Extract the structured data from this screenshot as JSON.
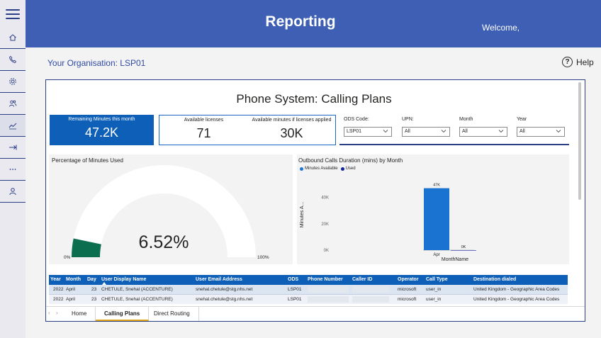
{
  "header": {
    "title": "Reporting",
    "welcome": "Welcome,"
  },
  "sidebar": {
    "items": [
      {
        "icon": "home-icon"
      },
      {
        "icon": "phone-icon"
      },
      {
        "icon": "settings-icon"
      },
      {
        "icon": "users-icon"
      },
      {
        "icon": "chart-icon"
      },
      {
        "icon": "arrow-right-icon"
      },
      {
        "icon": "more-icon"
      },
      {
        "icon": "user-icon"
      }
    ]
  },
  "organisation": {
    "label": "Your Organisation: LSP01"
  },
  "help": {
    "label": "Help",
    "icon_glyph": "?"
  },
  "report": {
    "title": "Phone System: Calling Plans",
    "kpi_remaining": {
      "label": "Remaining Minutes this month",
      "value": "47.2K"
    },
    "kpi_licenses": {
      "label": "Available licenses",
      "value": "71"
    },
    "kpi_minutes_applied": {
      "label": "Available minutes if licenses applied",
      "value": "30K"
    },
    "filters": [
      {
        "label": "ODS Code:",
        "value": "LSP01"
      },
      {
        "label": "UPN:",
        "value": "All"
      },
      {
        "label": "Month",
        "value": "All"
      },
      {
        "label": "Year",
        "value": "All"
      }
    ]
  },
  "chart_data": [
    {
      "type": "gauge",
      "title": "Percentage of Minutes Used",
      "value": 6.52,
      "value_label": "6.52%",
      "min_label": "0%",
      "max_label": "100%",
      "colors": {
        "fill": "#0b6e4f",
        "track": "#ffffff"
      }
    },
    {
      "type": "bar",
      "title": "Outbound Calls Duration (mins) by Month",
      "xlabel": "MonthName",
      "ylabel": "Minutes A...",
      "categories": [
        "Apr"
      ],
      "series": [
        {
          "name": "Minutes Available",
          "values": [
            47000
          ],
          "labels": [
            "47K"
          ],
          "color": "#1a73d0"
        },
        {
          "name": "Used",
          "values": [
            0
          ],
          "labels": [
            "0K"
          ],
          "color": "#12239e"
        }
      ],
      "yticks": [
        "0K",
        "20K",
        "40K"
      ],
      "ylim": [
        0,
        50000
      ]
    }
  ],
  "table": {
    "columns": [
      "Year",
      "Month",
      "Day",
      "User Display Name",
      "User Email Address",
      "ODS",
      "Phone Number",
      "Caller ID",
      "Operator",
      "Call Type",
      "Destination dialed"
    ],
    "rows": [
      [
        "2022",
        "April",
        "23",
        "CHETULE, Snehal (ACCENTURE)",
        "snehal.chetule@stg.nhs.net",
        "LSP01",
        "",
        "",
        "microsoft",
        "user_in",
        "United Kingdom - Geographic Area Codes"
      ],
      [
        "2022",
        "April",
        "23",
        "CHETULE, Snehal (ACCENTURE)",
        "snehal.chetule@stg.nhs.net",
        "LSP01",
        "",
        "",
        "microsoft",
        "user_in",
        "United Kingdom - Geographic Area Codes"
      ]
    ]
  },
  "tabs": [
    {
      "label": "Home"
    },
    {
      "label": "Calling Plans",
      "active": true
    },
    {
      "label": "Direct Routing"
    }
  ]
}
